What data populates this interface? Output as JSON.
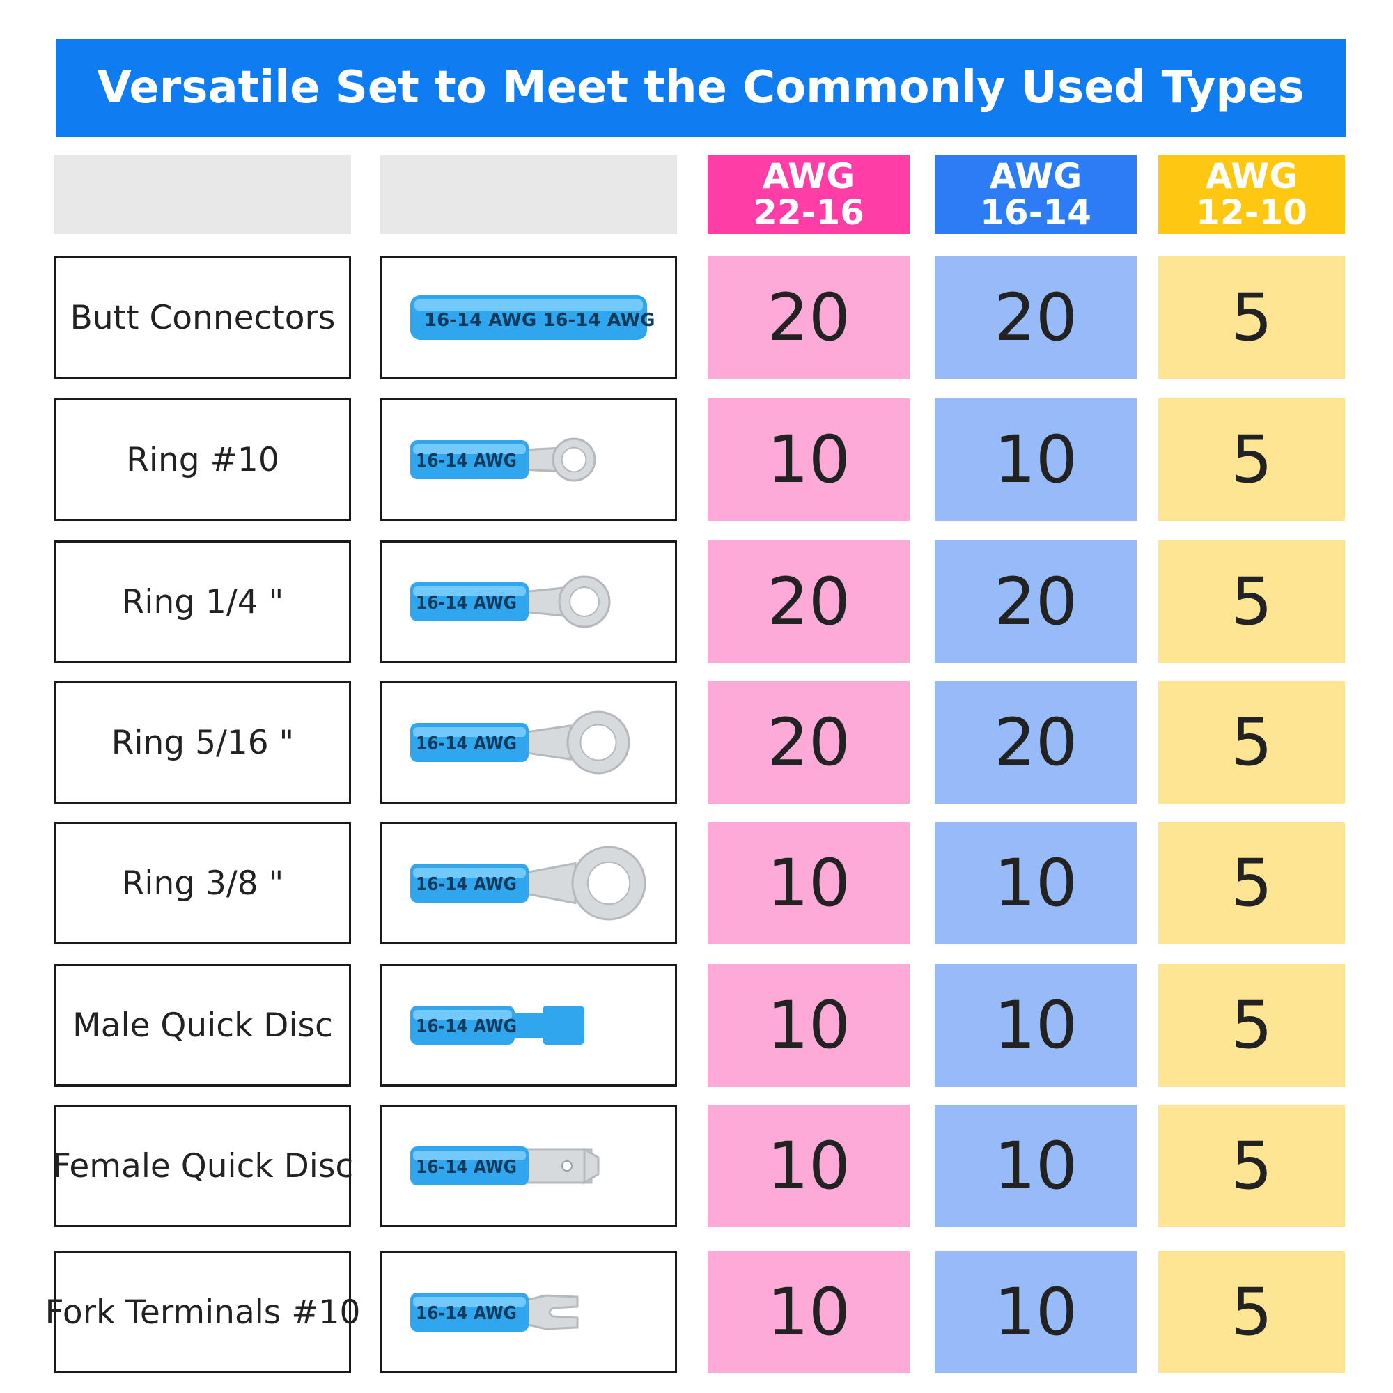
{
  "title": "Versatile Set to Meet the Commonly Used Types",
  "columns": [
    {
      "line1": "AWG",
      "line2": "22-16",
      "header_color": "#ff3da6",
      "cell_color": "#fdaad9"
    },
    {
      "line1": "AWG",
      "line2": "16-14",
      "header_color": "#2b7cf5",
      "cell_color": "#97baf9"
    },
    {
      "line1": "AWG",
      "line2": "12-10",
      "header_color": "#fdc712",
      "cell_color": "#fde594"
    }
  ],
  "tube_label": "16-14 AWG",
  "rows": [
    {
      "name": "Butt Connectors",
      "icon": "butt-connector-image",
      "counts": [
        "20",
        "20",
        "5"
      ]
    },
    {
      "name": "Ring #10",
      "icon": "ring-terminal-10-image",
      "counts": [
        "10",
        "10",
        "5"
      ]
    },
    {
      "name": "Ring 1/4 \"",
      "icon": "ring-terminal-quarter-image",
      "counts": [
        "20",
        "20",
        "5"
      ]
    },
    {
      "name": "Ring 5/16 \"",
      "icon": "ring-terminal-5-16-image",
      "counts": [
        "20",
        "20",
        "5"
      ]
    },
    {
      "name": "Ring 3/8 \"",
      "icon": "ring-terminal-3-8-image",
      "counts": [
        "10",
        "10",
        "5"
      ]
    },
    {
      "name": "Male Quick Disc",
      "icon": "male-quick-disconnect-image",
      "counts": [
        "10",
        "10",
        "5"
      ]
    },
    {
      "name": "Female Quick Disc",
      "icon": "female-quick-disconnect-image",
      "counts": [
        "10",
        "10",
        "5"
      ]
    },
    {
      "name": "Fork Terminals #10",
      "icon": "fork-terminal-image",
      "counts": [
        "10",
        "10",
        "5"
      ]
    }
  ]
}
